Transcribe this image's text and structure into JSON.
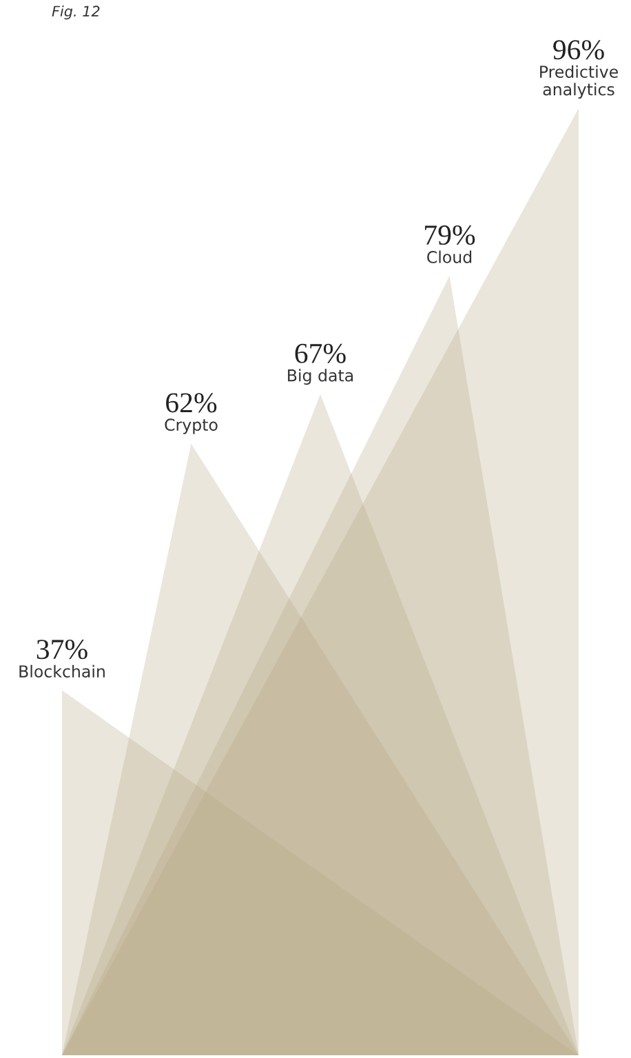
{
  "chart_data": {
    "type": "other",
    "annotations": [
      "Fig. 12"
    ],
    "categories": [
      "Blockchain",
      "Crypto",
      "Big data",
      "Cloud",
      "Predictive analytics"
    ],
    "values": [
      37,
      62,
      67,
      79,
      96
    ],
    "value_labels": [
      "37%",
      "62%",
      "67%",
      "79%",
      "96%"
    ],
    "color": "#b5a783"
  }
}
